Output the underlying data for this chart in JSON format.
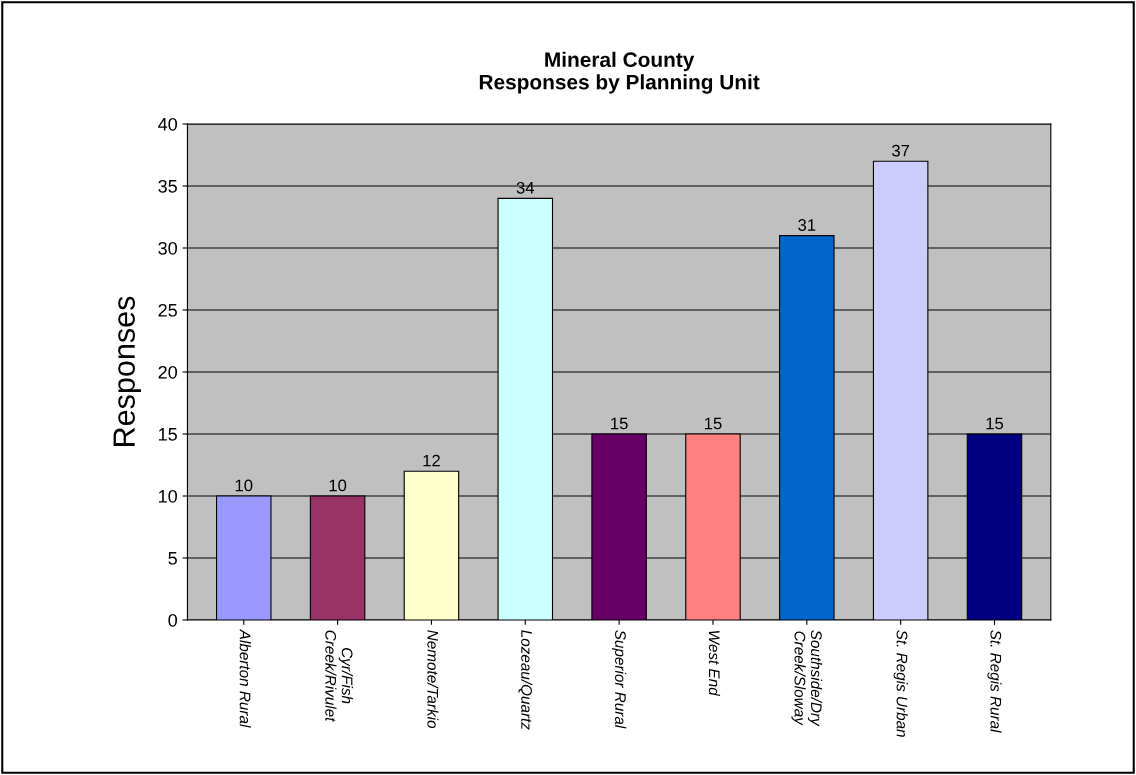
{
  "chart_data": {
    "type": "bar",
    "title": "Mineral County\nResponses by Planning Unit",
    "ylabel": "Responses",
    "categories": [
      "Alberton Rural",
      "Cyr/Fish\nCreek/Rivulet",
      "Nemote/Tarkio",
      "Lozeau/Quartz",
      "Superior Rural",
      "West End",
      "Southside/Dry\nCreek/Sloway",
      "St. Regis Urban",
      "St. Regis Rural"
    ],
    "values": [
      10,
      10,
      12,
      34,
      15,
      15,
      31,
      37,
      15
    ],
    "colors": [
      "#9999ff",
      "#993366",
      "#ffffcc",
      "#ccffff",
      "#660066",
      "#ff8080",
      "#0066cc",
      "#ccccff",
      "#000080"
    ],
    "ylim": [
      0,
      40
    ],
    "yticks": [
      0,
      5,
      10,
      15,
      20,
      25,
      30,
      35,
      40
    ],
    "grid": "y",
    "data_labels": true,
    "legend": false
  }
}
